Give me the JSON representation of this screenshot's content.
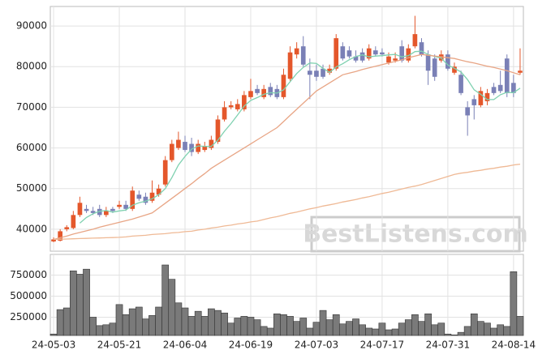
{
  "chart_data": {
    "type": "candlestick",
    "watermark": "BestListens.com",
    "categories": [
      "24-05-03",
      null,
      null,
      null,
      null,
      null,
      null,
      null,
      null,
      null,
      "24-05-21",
      null,
      null,
      null,
      null,
      null,
      null,
      null,
      null,
      null,
      "24-06-04",
      null,
      null,
      null,
      null,
      null,
      null,
      null,
      null,
      null,
      "24-06-19",
      null,
      null,
      null,
      null,
      null,
      null,
      null,
      null,
      null,
      "24-07-03",
      null,
      null,
      null,
      null,
      null,
      null,
      null,
      null,
      null,
      "24-07-17",
      null,
      null,
      null,
      null,
      null,
      null,
      null,
      null,
      null,
      "24-07-31",
      null,
      null,
      null,
      null,
      null,
      null,
      null,
      null,
      null,
      "24-08-14",
      null
    ],
    "up_color": "#e4572b",
    "down_color": "#7a80b6",
    "open": [
      37000,
      37200,
      40000,
      40300,
      43500,
      45000,
      44500,
      45000,
      43500,
      45000,
      45500,
      46000,
      45000,
      48500,
      48000,
      47000,
      48500,
      51000,
      57000,
      60000,
      61500,
      61000,
      59000,
      59500,
      60000,
      61500,
      67000,
      70000,
      69500,
      69500,
      72500,
      74500,
      72500,
      75000,
      74500,
      72500,
      77000,
      83000,
      85000,
      79000,
      79000,
      79500,
      78500,
      79500,
      85000,
      84000,
      82500,
      83500,
      82000,
      84000,
      83500,
      81000,
      81500,
      85000,
      81500,
      85000,
      86000,
      83000,
      82000,
      81500,
      83000,
      78500,
      78000,
      70000,
      72000,
      70500,
      71500,
      75000,
      75500,
      82000,
      76000,
      78500
    ],
    "high": [
      38000,
      40000,
      41000,
      44500,
      48000,
      46000,
      45500,
      46000,
      45500,
      45500,
      47000,
      47000,
      50500,
      49500,
      49000,
      52000,
      51000,
      58000,
      62000,
      64000,
      63000,
      62500,
      62000,
      61500,
      63000,
      68000,
      71500,
      71500,
      72000,
      74000,
      77000,
      75500,
      75500,
      76000,
      75500,
      79500,
      85000,
      86000,
      87500,
      82000,
      80500,
      80500,
      80500,
      88000,
      86000,
      85000,
      84000,
      84500,
      85500,
      85000,
      84500,
      83500,
      83500,
      86500,
      85500,
      92500,
      87000,
      84000,
      83000,
      84000,
      84000,
      81000,
      79000,
      71500,
      73000,
      75000,
      74500,
      76000,
      79000,
      83000,
      78000,
      84500
    ],
    "low": [
      36800,
      37000,
      39500,
      40000,
      43000,
      44000,
      43500,
      43000,
      43000,
      44000,
      45000,
      44500,
      44500,
      47000,
      46000,
      46500,
      48000,
      50500,
      56500,
      59500,
      59000,
      58000,
      58500,
      59000,
      59500,
      61000,
      66500,
      69500,
      69000,
      69000,
      72000,
      73000,
      72000,
      72500,
      72000,
      72000,
      76500,
      82000,
      80000,
      72000,
      76500,
      77000,
      78000,
      79000,
      81500,
      82000,
      81000,
      81000,
      81500,
      82500,
      82500,
      80500,
      81000,
      81000,
      81000,
      84500,
      82500,
      75500,
      76500,
      81000,
      79000,
      78000,
      73000,
      63000,
      67000,
      70000,
      70500,
      73000,
      73500,
      72500,
      72500,
      78000
    ],
    "close": [
      37500,
      39500,
      40500,
      43500,
      46500,
      44500,
      44000,
      43500,
      44500,
      44500,
      46000,
      45000,
      49500,
      47500,
      46500,
      49000,
      50000,
      57000,
      61000,
      62000,
      59500,
      59000,
      61000,
      60500,
      62000,
      67000,
      70000,
      70500,
      70800,
      73000,
      74000,
      73500,
      74500,
      73000,
      72500,
      78000,
      83500,
      84500,
      80500,
      78000,
      77500,
      77500,
      79500,
      87000,
      82000,
      82500,
      81500,
      81500,
      84500,
      83000,
      83000,
      82500,
      82000,
      81500,
      84500,
      88000,
      83000,
      79000,
      77500,
      83000,
      79500,
      80000,
      73500,
      68000,
      70500,
      74000,
      73500,
      73500,
      74000,
      73500,
      73500,
      79000
    ],
    "moving_averages": [
      {
        "color": "#7fd1b0",
        "values": [
          null,
          null,
          null,
          null,
          41500,
          42900,
          43800,
          44400,
          44600,
          44200,
          44500,
          44700,
          45900,
          46500,
          46900,
          47500,
          48500,
          50000,
          52700,
          55800,
          57900,
          59700,
          60500,
          60400,
          60400,
          61900,
          64100,
          66000,
          68100,
          70300,
          71700,
          72400,
          73200,
          73600,
          73500,
          74300,
          76300,
          78300,
          79800,
          80900,
          80800,
          79600,
          78600,
          79900,
          80700,
          81700,
          82500,
          82900,
          82400,
          82600,
          82700,
          82900,
          83000,
          82400,
          82700,
          83700,
          83800,
          83000,
          82500,
          82100,
          80400,
          79600,
          78700,
          76800,
          74300,
          73200,
          71900,
          71900,
          73100,
          73700,
          73600,
          74700
        ]
      },
      {
        "color": "#e8a585",
        "values": [
          37500,
          37900,
          38300,
          38800,
          39200,
          39600,
          40000,
          40500,
          40900,
          41300,
          41700,
          42100,
          42500,
          43000,
          43500,
          44000,
          45200,
          46400,
          47600,
          48800,
          50000,
          51200,
          52500,
          53700,
          55000,
          56000,
          57000,
          58000,
          59000,
          60000,
          61000,
          62000,
          63000,
          64000,
          65000,
          66500,
          68000,
          69500,
          71000,
          72500,
          74000,
          75000,
          76000,
          77000,
          78000,
          78400,
          78800,
          79300,
          79700,
          80100,
          80500,
          80900,
          81300,
          81700,
          82200,
          82600,
          83000,
          82800,
          82600,
          82400,
          82200,
          82000,
          81600,
          81200,
          80900,
          80500,
          80100,
          79800,
          79400,
          79000,
          78500,
          78000
        ]
      },
      {
        "color": "#efb995",
        "values": [
          37500,
          37550,
          37600,
          37650,
          37700,
          37750,
          37800,
          37850,
          37900,
          37950,
          38000,
          38100,
          38300,
          38400,
          38500,
          38700,
          38800,
          38900,
          39100,
          39200,
          39400,
          39500,
          39800,
          40000,
          40300,
          40500,
          40800,
          41000,
          41300,
          41500,
          41800,
          42000,
          42400,
          42800,
          43100,
          43500,
          43900,
          44200,
          44600,
          45000,
          45300,
          45700,
          46000,
          46300,
          46700,
          47000,
          47300,
          47700,
          48000,
          48400,
          48800,
          49100,
          49500,
          49900,
          50300,
          50600,
          51000,
          51500,
          52000,
          52500,
          53000,
          53500,
          53800,
          54000,
          54300,
          54500,
          54800,
          55000,
          55300,
          55500,
          55800,
          56000
        ]
      }
    ],
    "ylim": [
      34600,
      94800
    ],
    "yticks": [
      40000,
      50000,
      60000,
      70000,
      80000,
      90000
    ],
    "volume": [
      50000,
      340000,
      360000,
      800000,
      760000,
      820000,
      250000,
      150000,
      160000,
      180000,
      400000,
      280000,
      350000,
      370000,
      230000,
      270000,
      370000,
      870000,
      700000,
      420000,
      360000,
      260000,
      320000,
      260000,
      350000,
      330000,
      300000,
      180000,
      240000,
      260000,
      250000,
      220000,
      140000,
      120000,
      290000,
      280000,
      260000,
      200000,
      240000,
      120000,
      190000,
      330000,
      220000,
      280000,
      170000,
      200000,
      230000,
      160000,
      120000,
      110000,
      180000,
      100000,
      110000,
      180000,
      220000,
      280000,
      200000,
      290000,
      160000,
      180000,
      50000,
      40000,
      70000,
      140000,
      290000,
      200000,
      180000,
      120000,
      160000,
      140000,
      790000,
      260000
    ],
    "volume_color": "#7a7a7a",
    "volume_ylim": [
      33000,
      995000
    ],
    "volume_yticks": [
      250000,
      500000,
      750000
    ],
    "grid": true
  }
}
